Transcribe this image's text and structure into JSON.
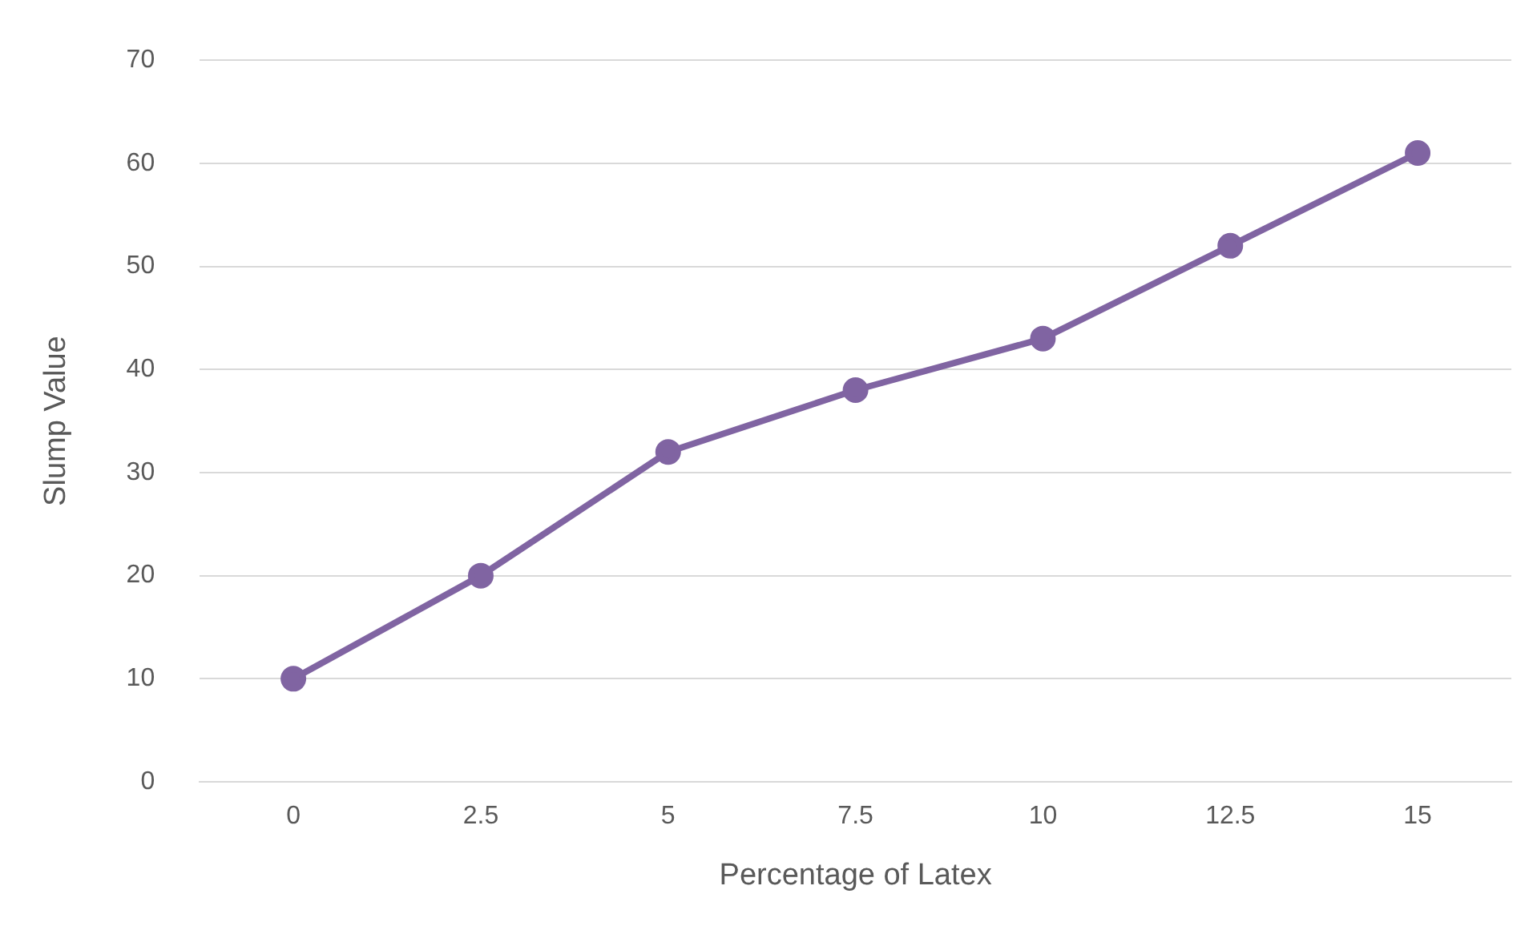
{
  "chart_data": {
    "type": "line",
    "xlabel": "Percentage of Latex",
    "ylabel": "Slump Value",
    "categories": [
      "0",
      "2.5",
      "5",
      "7.5",
      "10",
      "12.5",
      "15"
    ],
    "series": [
      {
        "color": "#8064a2",
        "values": [
          10,
          20,
          32,
          38,
          43,
          52,
          61
        ]
      }
    ],
    "ylim": [
      0,
      70
    ],
    "yticks": [
      0,
      10,
      20,
      30,
      40,
      50,
      60,
      70
    ],
    "grid": "y",
    "legend": false,
    "marker": "circle",
    "line_style": "solid"
  }
}
